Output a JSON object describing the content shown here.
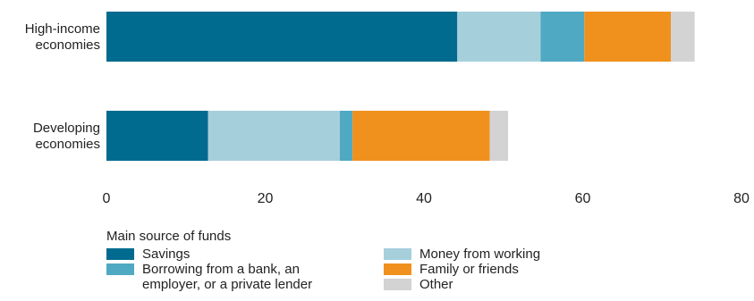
{
  "chart_data": {
    "type": "bar",
    "orientation": "horizontal",
    "stacked": true,
    "categories": [
      "High-income\neconomies",
      "Developing\neconomies"
    ],
    "series": [
      {
        "name": "Savings",
        "color": "#006B8F",
        "values": [
          44.2,
          12.8
        ]
      },
      {
        "name": "Money from working",
        "color": "#A6CFDC",
        "values": [
          10.5,
          16.6
        ]
      },
      {
        "name": "Borrowing from a bank, an\nemployer, or a private lender",
        "color": "#4FA9C2",
        "values": [
          5.5,
          1.6
        ]
      },
      {
        "name": "Family or friends",
        "color": "#F0911E",
        "values": [
          10.9,
          17.3
        ]
      },
      {
        "name": "Other",
        "color": "#D3D3D4",
        "values": [
          3.0,
          2.3
        ]
      }
    ],
    "xlim": [
      0,
      80
    ],
    "xticks": [
      0,
      20,
      40,
      60,
      80
    ],
    "grid": false,
    "legend_title": "Main source of funds",
    "legend_position": "bottom"
  }
}
